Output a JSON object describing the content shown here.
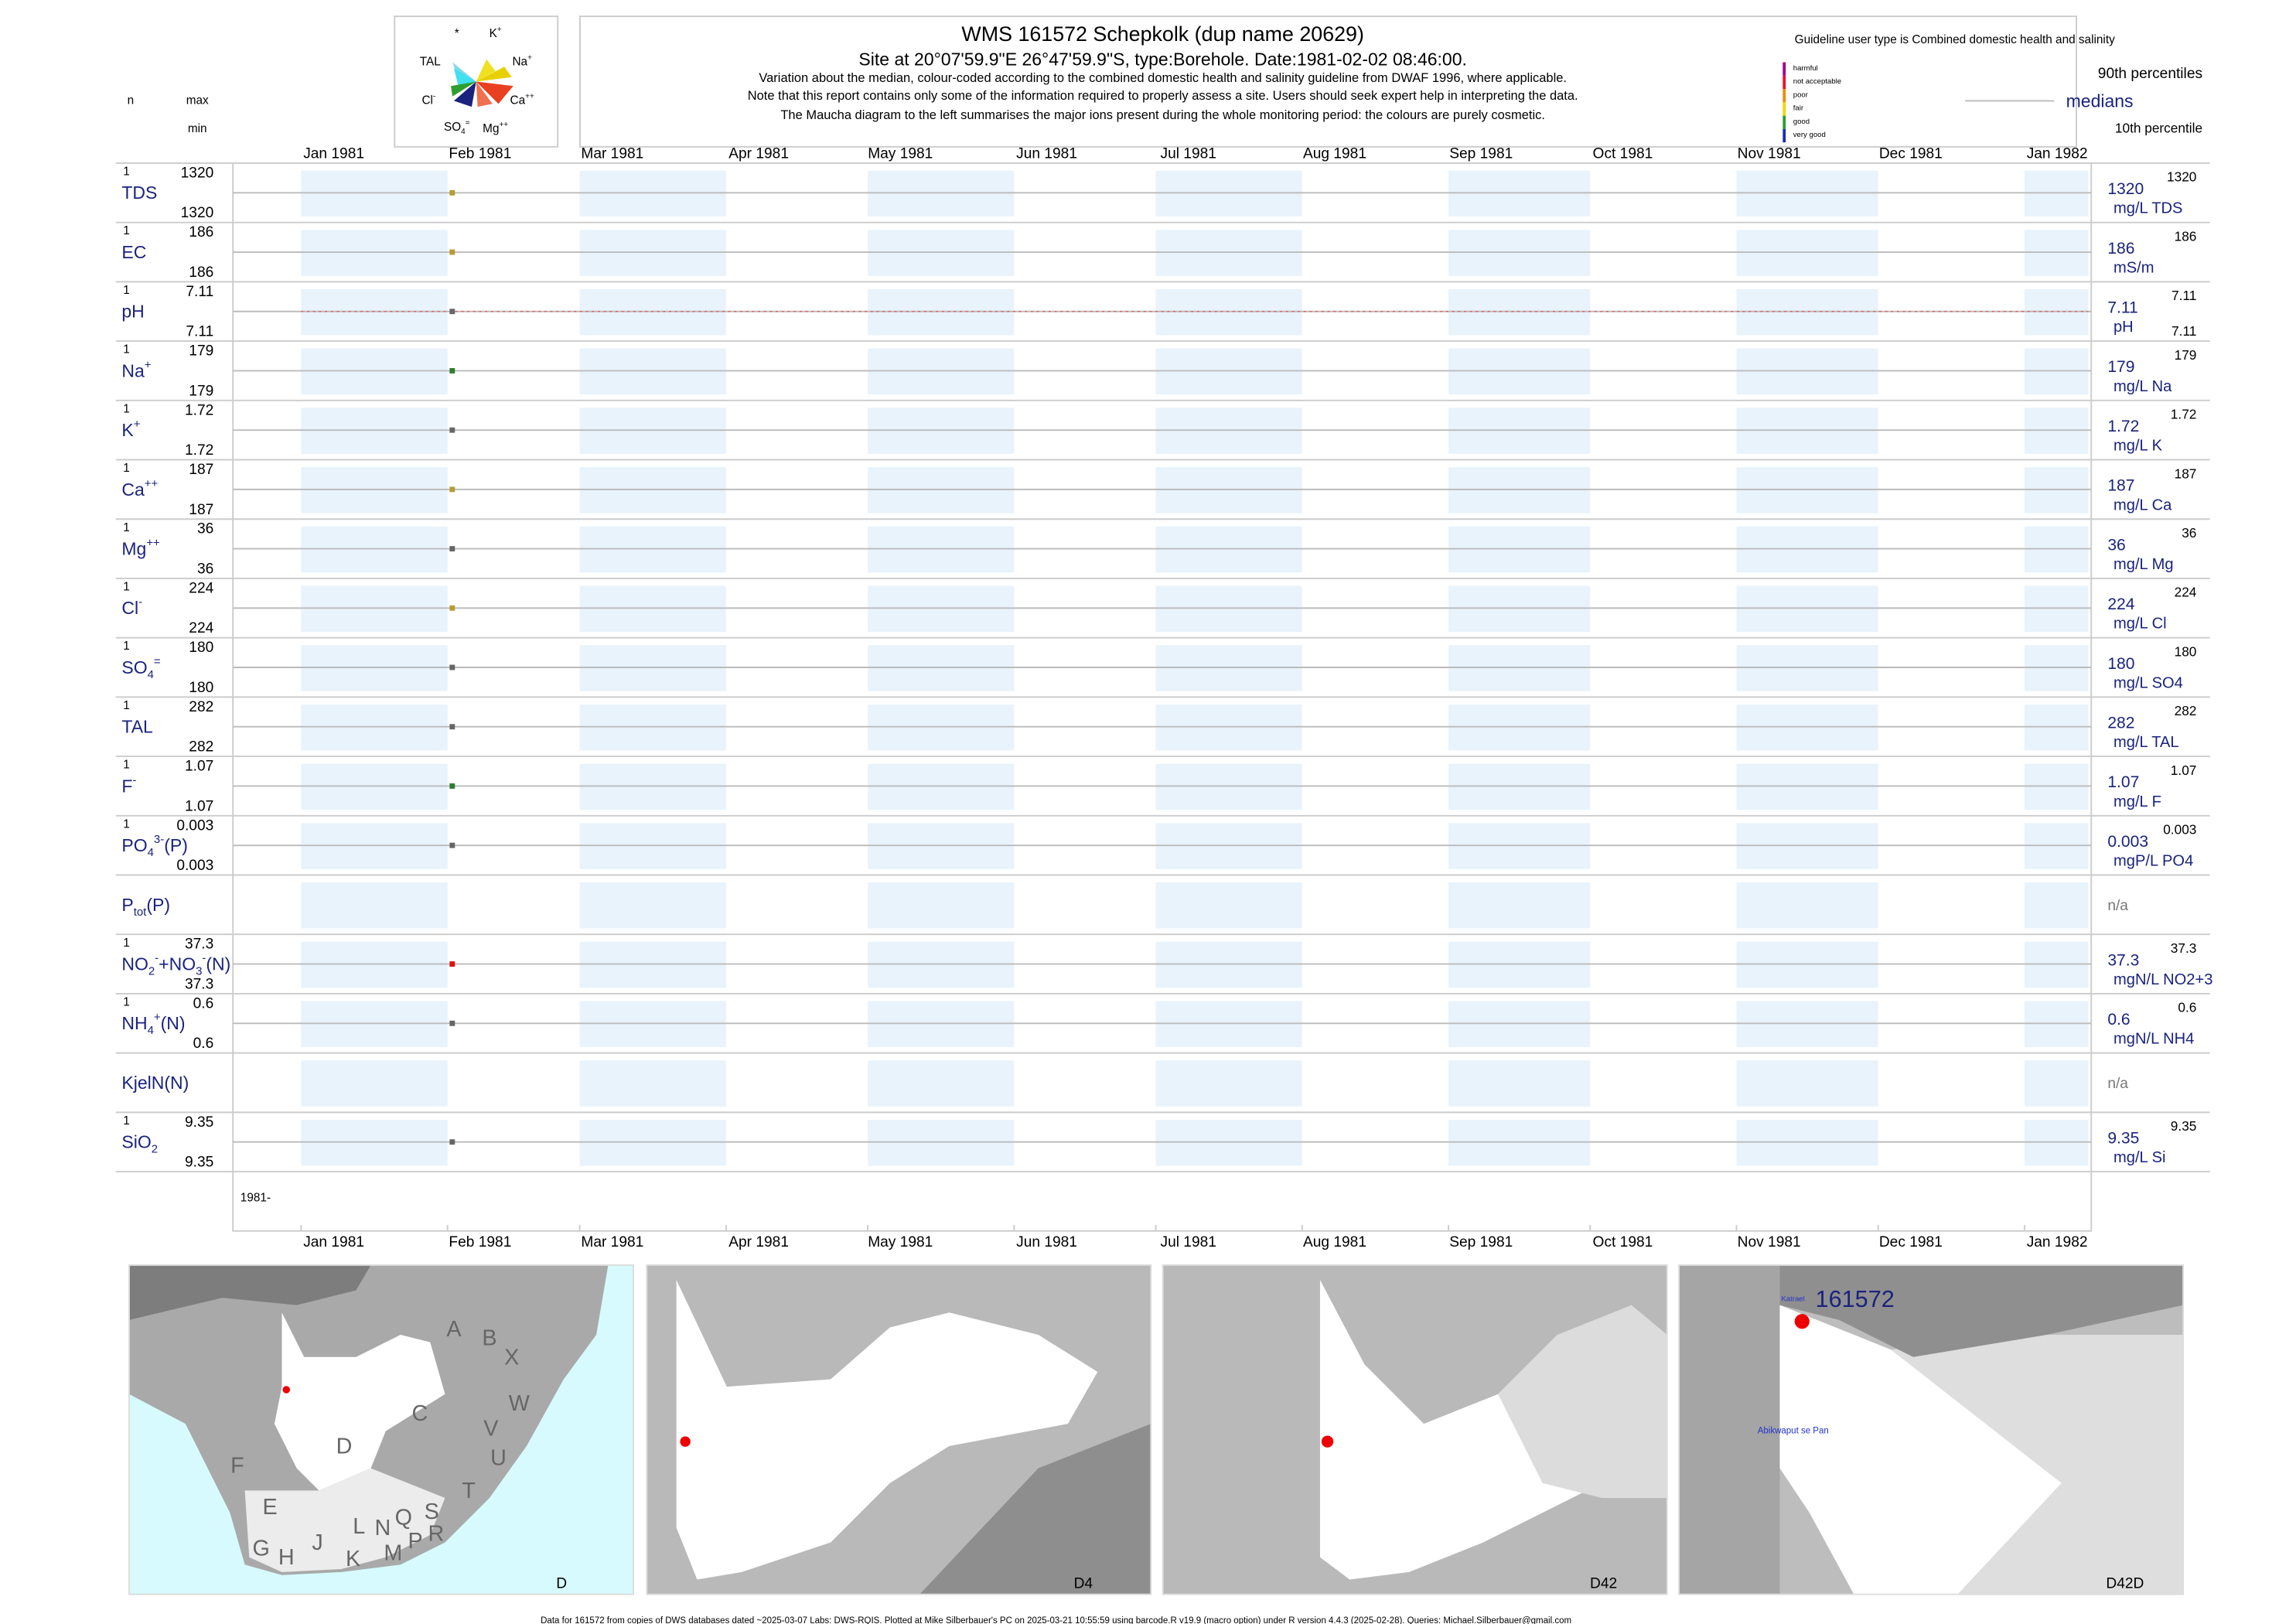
{
  "header": {
    "title": "WMS 161572  Schepkolk (dup name 20629)",
    "subtitle": "Site at 20°07'59.9\"E 26°47'59.9\"S, type:Borehole. Date:1981-02-02 08:46:00.",
    "notes": [
      "Variation about the median,  colour-coded according to the combined domestic health and salinity guideline from DWAF 1996, where applicable.",
      "Note that this report contains only some of the information required to properly assess a site. Users should seek expert help in interpreting the data.",
      "The Maucha diagram to the left summarises the major ions present during the whole monitoring period: the colours are purely cosmetic."
    ],
    "n_label": "n",
    "max_label": "max",
    "min_label": "min"
  },
  "maucha": {
    "labels": [
      [
        {
          "text": "*"
        }
      ],
      [
        {
          "text": "K"
        },
        {
          "text": "+",
          "pos": "sup"
        }
      ],
      [
        {
          "text": "TAL"
        }
      ],
      [
        {
          "text": "Na"
        },
        {
          "text": "+",
          "pos": "sup"
        }
      ],
      [
        {
          "text": "Cl"
        },
        {
          "text": "-",
          "pos": "sup"
        }
      ],
      [
        {
          "text": "Ca"
        },
        {
          "text": "++",
          "pos": "sup"
        }
      ],
      [
        {
          "text": "SO"
        },
        {
          "text": "4",
          "pos": "sub"
        },
        {
          "text": "=",
          "pos": "sup"
        }
      ],
      [
        {
          "text": "Mg"
        },
        {
          "text": "++",
          "pos": "sup"
        }
      ]
    ]
  },
  "legend": {
    "guideline": "Guideline user type is Combined domestic health and salinity",
    "classes": [
      {
        "label": "harmful",
        "color": "#a0008c"
      },
      {
        "label": "not acceptable",
        "color": "#e8112d"
      },
      {
        "label": "poor",
        "color": "#f08c00"
      },
      {
        "label": "fair",
        "color": "#f0d800"
      },
      {
        "label": "good",
        "color": "#2e9e2e"
      },
      {
        "label": "very good",
        "color": "#1a2fb0"
      }
    ],
    "p90": "90th percentiles",
    "median": "medians",
    "p10": "10th percentile"
  },
  "months": [
    {
      "value": "1981-01-01",
      "label": "Jan 1981"
    },
    {
      "value": "1981-02-01",
      "label": "Feb 1981"
    },
    {
      "value": "1981-03-01",
      "label": "Mar 1981"
    },
    {
      "value": "1981-04-01",
      "label": "Apr 1981"
    },
    {
      "value": "1981-05-01",
      "label": "May 1981"
    },
    {
      "value": "1981-06-01",
      "label": "Jun 1981"
    },
    {
      "value": "1981-07-01",
      "label": "Jul 1981"
    },
    {
      "value": "1981-08-01",
      "label": "Aug 1981"
    },
    {
      "value": "1981-09-01",
      "label": "Sep 1981"
    },
    {
      "value": "1981-10-01",
      "label": "Oct 1981"
    },
    {
      "value": "1981-11-01",
      "label": "Nov 1981"
    },
    {
      "value": "1981-12-01",
      "label": "Dec 1981"
    },
    {
      "value": "1982-01-01",
      "label": "Jan 1982"
    }
  ],
  "sample_date": "1981-02-02",
  "year_label": "1981-",
  "rows": [
    {
      "label": [
        {
          "text": "TDS"
        }
      ],
      "n": 1,
      "max": 1320,
      "min": 1320,
      "median": 1320,
      "unit": "mg/L TDS",
      "p90": 1320,
      "color": "#b89b35"
    },
    {
      "label": [
        {
          "text": "EC"
        }
      ],
      "n": 1,
      "max": 186,
      "min": 186,
      "median": 186,
      "unit": "mS/m",
      "p90": 186,
      "color": "#b89b35"
    },
    {
      "label": [
        {
          "text": "pH"
        }
      ],
      "n": 1,
      "max": 7.11,
      "min": 7.11,
      "median": 7.11,
      "unit": "pH",
      "p90": 7.11,
      "p10": 7.11,
      "color": "#666666",
      "guideline": true
    },
    {
      "label": [
        {
          "text": "Na"
        },
        {
          "text": "+",
          "pos": "sup"
        }
      ],
      "n": 1,
      "max": 179,
      "min": 179,
      "median": 179,
      "unit": "mg/L Na",
      "p90": 179,
      "color": "#2e7d32"
    },
    {
      "label": [
        {
          "text": "K"
        },
        {
          "text": "+",
          "pos": "sup"
        }
      ],
      "n": 1,
      "max": 1.72,
      "min": 1.72,
      "median": 1.72,
      "unit": "mg/L K",
      "p90": 1.72,
      "color": "#666666"
    },
    {
      "label": [
        {
          "text": "Ca"
        },
        {
          "text": "++",
          "pos": "sup"
        }
      ],
      "n": 1,
      "max": 187,
      "min": 187,
      "median": 187,
      "unit": "mg/L Ca",
      "p90": 187,
      "color": "#b89b35"
    },
    {
      "label": [
        {
          "text": "Mg"
        },
        {
          "text": "++",
          "pos": "sup"
        }
      ],
      "n": 1,
      "max": 36,
      "min": 36,
      "median": 36,
      "unit": "mg/L Mg",
      "p90": 36,
      "color": "#666666"
    },
    {
      "label": [
        {
          "text": "Cl"
        },
        {
          "text": "-",
          "pos": "sup"
        }
      ],
      "n": 1,
      "max": 224,
      "min": 224,
      "median": 224,
      "unit": "mg/L Cl",
      "p90": 224,
      "color": "#b89b35"
    },
    {
      "label": [
        {
          "text": "SO"
        },
        {
          "text": "4",
          "pos": "sub"
        },
        {
          "text": "=",
          "pos": "sup"
        }
      ],
      "n": 1,
      "max": 180,
      "min": 180,
      "median": 180,
      "unit": "mg/L SO4",
      "p90": 180,
      "color": "#666666"
    },
    {
      "label": [
        {
          "text": "TAL"
        }
      ],
      "n": 1,
      "max": 282,
      "min": 282,
      "median": 282,
      "unit": "mg/L TAL",
      "p90": 282,
      "color": "#666666"
    },
    {
      "label": [
        {
          "text": "F"
        },
        {
          "text": "-",
          "pos": "sup"
        }
      ],
      "n": 1,
      "max": 1.07,
      "min": 1.07,
      "median": 1.07,
      "unit": "mg/L F",
      "p90": 1.07,
      "color": "#2e7d32"
    },
    {
      "label": [
        {
          "text": "PO"
        },
        {
          "text": "4",
          "pos": "sub"
        },
        {
          "text": "3-",
          "pos": "sup"
        },
        {
          "text": "(P)"
        }
      ],
      "n": 1,
      "max": 0.003,
      "min": 0.003,
      "median": 0.003,
      "unit": "mgP/L PO4",
      "p90": 0.003,
      "color": "#666666"
    },
    {
      "label": [
        {
          "text": "P"
        },
        {
          "text": "tot",
          "pos": "sub"
        },
        {
          "text": "(P)"
        }
      ],
      "na": "n/a"
    },
    {
      "label": [
        {
          "text": "NO"
        },
        {
          "text": "2",
          "pos": "sub"
        },
        {
          "text": "-",
          "pos": "sup"
        },
        {
          "text": "+NO"
        },
        {
          "text": "3",
          "pos": "sub"
        },
        {
          "text": "-",
          "pos": "sup"
        },
        {
          "text": "(N)"
        }
      ],
      "n": 1,
      "max": 37.3,
      "min": 37.3,
      "median": 37.3,
      "unit": "mgN/L NO2+3",
      "p90": 37.3,
      "color": "#e01010"
    },
    {
      "label": [
        {
          "text": "NH"
        },
        {
          "text": "4",
          "pos": "sub"
        },
        {
          "text": "+",
          "pos": "sup"
        },
        {
          "text": "(N)"
        }
      ],
      "n": 1,
      "max": 0.6,
      "min": 0.6,
      "median": 0.6,
      "unit": "mgN/L NH4",
      "p90": 0.6,
      "color": "#666666"
    },
    {
      "label": [
        {
          "text": "KjelN(N)"
        }
      ],
      "na": "n/a"
    },
    {
      "label": [
        {
          "text": "SiO"
        },
        {
          "text": "2",
          "pos": "sub"
        }
      ],
      "n": 1,
      "max": 9.35,
      "min": 9.35,
      "median": 9.35,
      "unit": "mg/L Si",
      "p90": 9.35,
      "color": "#666666"
    }
  ],
  "maps": [
    {
      "name": "D",
      "letters": [
        "A",
        "B",
        "X",
        "C",
        "W",
        "D",
        "V",
        "U",
        "F",
        "E",
        "T",
        "G",
        "H",
        "J",
        "L",
        "N",
        "Q",
        "S",
        "K",
        "M",
        "P",
        "R"
      ]
    },
    {
      "name": "D4"
    },
    {
      "name": "D42"
    },
    {
      "name": "D42D",
      "site": "161572",
      "places": [
        "Katrael",
        "Abikwaput se Pan"
      ]
    }
  ],
  "footer": "Data for 161572 from copies of DWS databases dated ~2025-03-07 Labs: DWS-RQIS. Plotted at Mike Silberbauer's PC on 2025-03-21 10:55:59 using barcode.R v19.9 (macro option) under R version 4.4.3 (2025-02-28). Queries: Michael.Silberbauer@gmail.com"
}
